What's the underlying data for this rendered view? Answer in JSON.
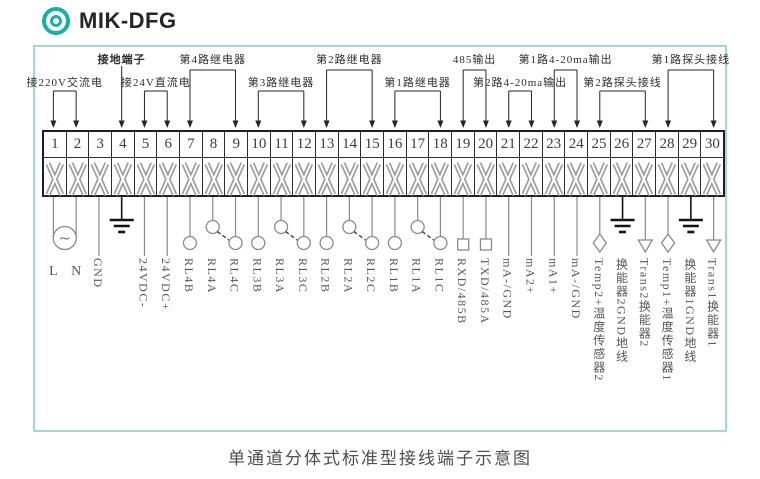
{
  "header": {
    "logo_text": "MIK-DFG"
  },
  "caption": "单通道分体式标准型接线端子示意图",
  "ac_symbol": "~",
  "colors": {
    "accent_teal": "#17b0a7",
    "frame_border": "#a6d4db",
    "wire_gray": "#8a8a8a",
    "line_dark": "#262626",
    "earth_black": "#141414",
    "label_gray": "#565656"
  },
  "top_groups": [
    {
      "label": "接220V交流电",
      "from": 1,
      "to": 2,
      "row": "low",
      "bold": false
    },
    {
      "label": "接地端子",
      "from": 4,
      "to": 4,
      "row": "high",
      "bold": true
    },
    {
      "label": "接24V直流电",
      "from": 5,
      "to": 6,
      "row": "low",
      "bold": false
    },
    {
      "label": "第4路继电器",
      "from": 7,
      "to": 9,
      "row": "high",
      "bold": false
    },
    {
      "label": "第3路继电器",
      "from": 10,
      "to": 12,
      "row": "low",
      "bold": false
    },
    {
      "label": "第2路继电器",
      "from": 13,
      "to": 15,
      "row": "high",
      "bold": false
    },
    {
      "label": "第1路继电器",
      "from": 16,
      "to": 18,
      "row": "low",
      "bold": false
    },
    {
      "label": "485输出",
      "from": 19,
      "to": 20,
      "row": "high",
      "bold": false
    },
    {
      "label": "第2路4-20ma输出",
      "from": 21,
      "to": 22,
      "row": "low",
      "bold": false
    },
    {
      "label": "第1路4-20ma输出",
      "from": 23,
      "to": 24,
      "row": "high",
      "bold": false
    },
    {
      "label": "第2路探头接线",
      "from": 25,
      "to": 27,
      "row": "low",
      "bold": false
    },
    {
      "label": "第1路探头接线",
      "from": 28,
      "to": 30,
      "row": "high",
      "bold": false
    }
  ],
  "terminals": [
    {
      "num": "1",
      "label": "L",
      "label_style": "horizontal",
      "symbol": "ac-pair-left"
    },
    {
      "num": "2",
      "label": "N",
      "label_style": "horizontal",
      "symbol": "ac-pair-right"
    },
    {
      "num": "3",
      "label": "GND",
      "label_style": "vertical",
      "symbol": "plain"
    },
    {
      "num": "4",
      "label": "",
      "label_style": "vertical",
      "symbol": "earth"
    },
    {
      "num": "5",
      "label": "24VDC-",
      "label_style": "vertical",
      "symbol": "plain"
    },
    {
      "num": "6",
      "label": "24VDC+",
      "label_style": "vertical",
      "symbol": "plain"
    },
    {
      "num": "7",
      "label": "RL4B",
      "label_style": "vertical",
      "symbol": "contact"
    },
    {
      "num": "8",
      "label": "RL4A",
      "label_style": "vertical",
      "symbol": "contact-arm"
    },
    {
      "num": "9",
      "label": "RL4C",
      "label_style": "vertical",
      "symbol": "contact"
    },
    {
      "num": "10",
      "label": "RL3B",
      "label_style": "vertical",
      "symbol": "contact"
    },
    {
      "num": "11",
      "label": "RL3A",
      "label_style": "vertical",
      "symbol": "contact-arm"
    },
    {
      "num": "12",
      "label": "RL3C",
      "label_style": "vertical",
      "symbol": "contact"
    },
    {
      "num": "13",
      "label": "RL2B",
      "label_style": "vertical",
      "symbol": "contact"
    },
    {
      "num": "14",
      "label": "RL2A",
      "label_style": "vertical",
      "symbol": "contact-arm"
    },
    {
      "num": "15",
      "label": "RL2C",
      "label_style": "vertical",
      "symbol": "contact"
    },
    {
      "num": "16",
      "label": "RL1B",
      "label_style": "vertical",
      "symbol": "contact"
    },
    {
      "num": "17",
      "label": "RL1A",
      "label_style": "vertical",
      "symbol": "contact-arm"
    },
    {
      "num": "18",
      "label": "RL1C",
      "label_style": "vertical",
      "symbol": "contact"
    },
    {
      "num": "19",
      "label": "RXD/485B",
      "label_style": "vertical",
      "symbol": "square"
    },
    {
      "num": "20",
      "label": "TXD/485A",
      "label_style": "vertical",
      "symbol": "square"
    },
    {
      "num": "21",
      "label": "mA-/GND",
      "label_style": "vertical",
      "symbol": "plain"
    },
    {
      "num": "22",
      "label": "mA2+",
      "label_style": "vertical",
      "symbol": "plain"
    },
    {
      "num": "23",
      "label": "mA1+",
      "label_style": "vertical",
      "symbol": "plain"
    },
    {
      "num": "24",
      "label": "mA-/GND",
      "label_style": "vertical",
      "symbol": "plain"
    },
    {
      "num": "25",
      "label": "Temp2+温度传感器2",
      "label_style": "vertical",
      "symbol": "diamond"
    },
    {
      "num": "26",
      "label": "换能器2GND地线",
      "label_style": "vertical",
      "symbol": "earth"
    },
    {
      "num": "27",
      "label": "Trans2换能器2",
      "label_style": "vertical",
      "symbol": "triangle"
    },
    {
      "num": "28",
      "label": "Temp1+温度传感器1",
      "label_style": "vertical",
      "symbol": "diamond"
    },
    {
      "num": "29",
      "label": "换能器1GND地线",
      "label_style": "vertical",
      "symbol": "earth"
    },
    {
      "num": "30",
      "label": "Trans1换能器1",
      "label_style": "vertical",
      "symbol": "triangle"
    }
  ]
}
